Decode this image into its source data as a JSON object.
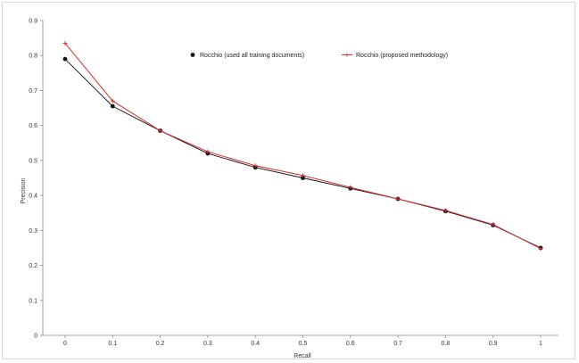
{
  "chart_data": {
    "type": "line",
    "xlabel": "Recall",
    "ylabel": "Precision",
    "x": [
      0,
      0.1,
      0.2,
      0.3,
      0.4,
      0.5,
      0.6,
      0.7,
      0.8,
      0.9,
      1
    ],
    "x_tick_labels": [
      "0",
      "0.1",
      "0.2",
      "0.3",
      "0.4",
      "0.5",
      "0.6",
      "0.7",
      "0.8",
      "0.9",
      "1"
    ],
    "y_ticks": [
      0,
      0.1,
      0.2,
      0.3,
      0.4,
      0.5,
      0.6,
      0.7,
      0.8,
      0.9
    ],
    "y_tick_labels": [
      "0",
      "0.1",
      "0.2",
      "0.3",
      "0.4",
      "0.5",
      "0.6",
      "0.7",
      "0.8",
      "0.9"
    ],
    "ylim": [
      0,
      0.9
    ],
    "xlim": [
      0,
      1
    ],
    "grid": false,
    "legend_position": "top-right",
    "series": [
      {
        "name": "Rocchio (used all training documents)",
        "values": [
          0.79,
          0.655,
          0.585,
          0.52,
          0.48,
          0.45,
          0.42,
          0.39,
          0.355,
          0.315,
          0.25
        ],
        "color": "#111111",
        "marker": "circle"
      },
      {
        "name": "Rocchio (proposed methodology)",
        "values": [
          0.835,
          0.67,
          0.585,
          0.525,
          0.485,
          0.457,
          0.423,
          0.39,
          0.357,
          0.317,
          0.248
        ],
        "color": "#d32f2f",
        "marker": "plus"
      }
    ]
  }
}
